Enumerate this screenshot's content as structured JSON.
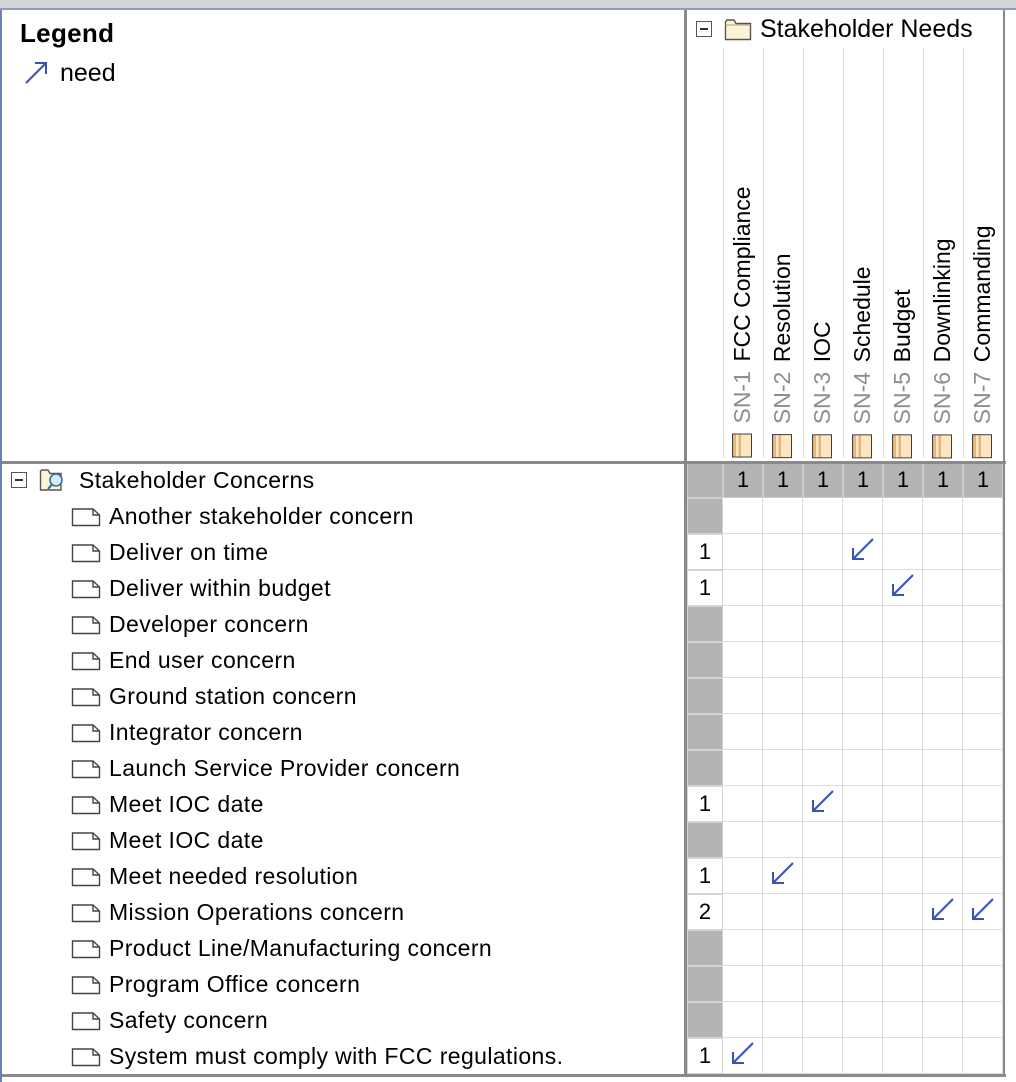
{
  "legend": {
    "title": "Legend",
    "items": [
      {
        "label": "need",
        "icon": "arrow-up-right-icon",
        "color": "#3a52b8"
      }
    ]
  },
  "columns_group": {
    "label": "Stakeholder Needs",
    "icon": "folder-icon",
    "expanded": true
  },
  "columns": [
    {
      "id": "SN-1",
      "title": "FCC Compliance",
      "total": "1"
    },
    {
      "id": "SN-2",
      "title": "Resolution",
      "total": "1"
    },
    {
      "id": "SN-3",
      "title": "IOC",
      "total": "1"
    },
    {
      "id": "SN-4",
      "title": "Schedule",
      "total": "1"
    },
    {
      "id": "SN-5",
      "title": "Budget",
      "total": "1"
    },
    {
      "id": "SN-6",
      "title": "Downlinking",
      "total": "1"
    },
    {
      "id": "SN-7",
      "title": "Commanding",
      "total": "1"
    }
  ],
  "rows_group": {
    "label": "Stakeholder Concerns",
    "icon": "package-magnifier-icon",
    "expanded": true
  },
  "rows": [
    {
      "label": "Another stakeholder concern",
      "count": "",
      "marks": []
    },
    {
      "label": "Deliver on time",
      "count": "1",
      "marks": [
        3
      ]
    },
    {
      "label": "Deliver within budget",
      "count": "1",
      "marks": [
        4
      ]
    },
    {
      "label": "Developer concern",
      "count": "",
      "marks": []
    },
    {
      "label": "End user concern",
      "count": "",
      "marks": []
    },
    {
      "label": "Ground station concern",
      "count": "",
      "marks": []
    },
    {
      "label": "Integrator concern",
      "count": "",
      "marks": []
    },
    {
      "label": "Launch Service Provider concern",
      "count": "",
      "marks": []
    },
    {
      "label": "Meet IOC date",
      "count": "1",
      "marks": [
        2
      ]
    },
    {
      "label": "Meet IOC date",
      "count": "",
      "marks": []
    },
    {
      "label": "Meet needed resolution",
      "count": "1",
      "marks": [
        1
      ]
    },
    {
      "label": "Mission Operations concern",
      "count": "2",
      "marks": [
        5,
        6
      ]
    },
    {
      "label": "Product Line/Manufacturing concern",
      "count": "",
      "marks": []
    },
    {
      "label": "Program Office concern",
      "count": "",
      "marks": []
    },
    {
      "label": "Safety concern",
      "count": "",
      "marks": []
    },
    {
      "label": "System must comply with FCC regulations.",
      "count": "1",
      "marks": [
        0
      ]
    }
  ],
  "colors": {
    "grid_line": "#dcdcdc",
    "border": "#8a8a8a",
    "count_cell_bg": "#b4b4b4",
    "dependency_arrow": "#3a52b8"
  },
  "dependency_icon": "arrow-down-left-icon"
}
